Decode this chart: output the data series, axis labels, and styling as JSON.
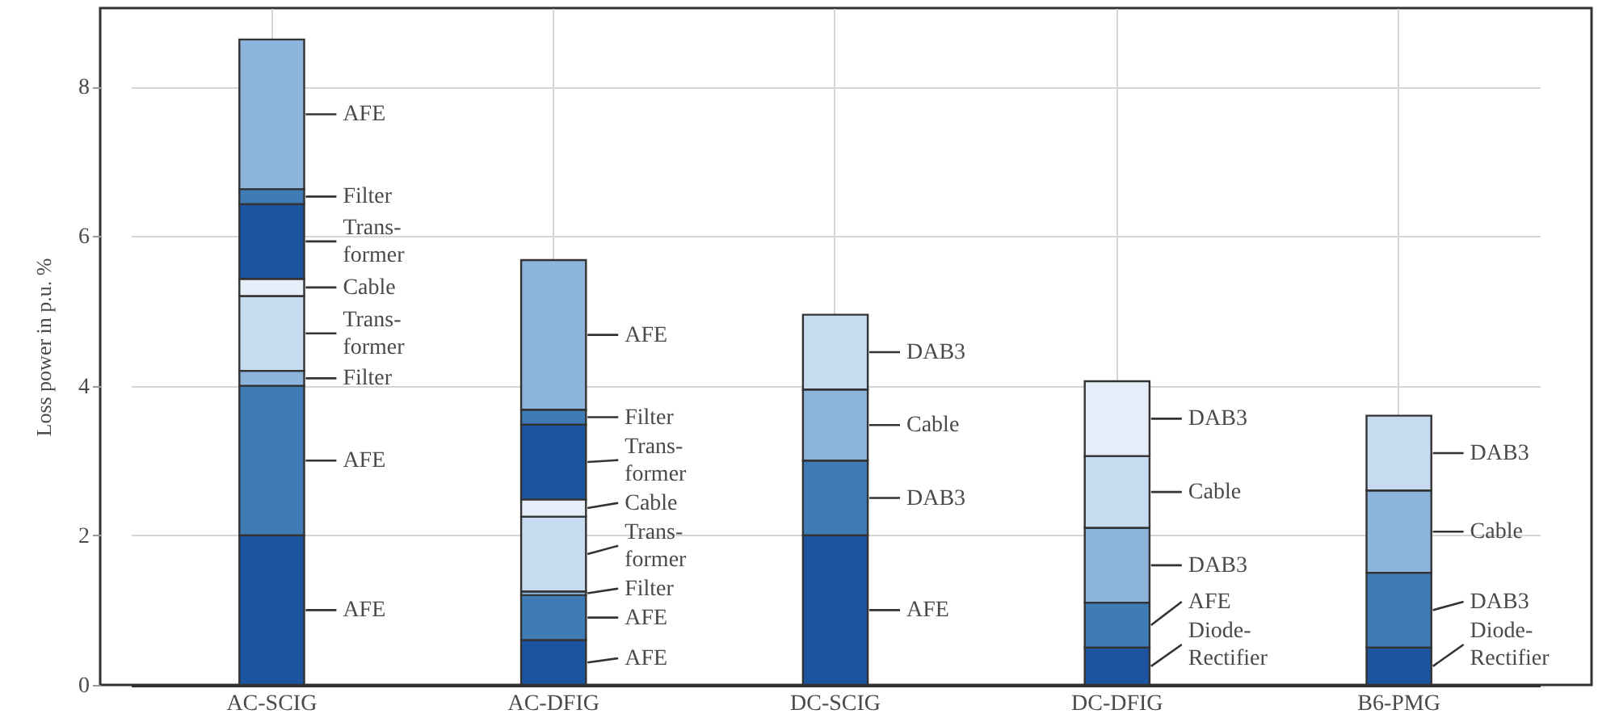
{
  "chart_data": {
    "type": "bar",
    "stacked": true,
    "ylabel": "Loss power in p.u. %",
    "categories": [
      "AC-SCIG",
      "AC-DFIG",
      "DC-SCIG",
      "DC-DFIG",
      "B6-PMG"
    ],
    "ylim": [
      0,
      9.05
    ],
    "yticks": [
      0,
      2,
      4,
      6,
      8
    ],
    "grid": true,
    "series": [
      {
        "color": "#1c54a0",
        "values": [
          2,
          0.6,
          2,
          0.5,
          0.5
        ],
        "value_labels": [
          "AFE",
          "AFE",
          "AFE",
          "Diode-\nRectifier",
          "Diode-\nRectifier"
        ]
      },
      {
        "color": "#3f7cb6",
        "values": [
          2,
          0.6,
          1,
          0.6,
          1.0
        ],
        "value_labels": [
          "AFE",
          "AFE",
          "DAB3",
          "AFE",
          "DAB3"
        ]
      },
      {
        "color": "#8db4dc",
        "values": [
          0.2,
          0.05,
          0.95,
          1.0,
          1.1
        ],
        "value_labels": [
          "Filter",
          "Filter",
          "Cable",
          "DAB3",
          "Cable"
        ]
      },
      {
        "color": "#c6dbef",
        "values": [
          1.0,
          1.0,
          1.0,
          0.96,
          1.0
        ],
        "value_labels": [
          "Trans-\nformer",
          "Trans-\nformer",
          "DAB3",
          "Cable",
          "DAB3"
        ]
      },
      {
        "color": "#e5eef8",
        "values": [
          0.23,
          0.23,
          null,
          1.0,
          null
        ],
        "value_labels": [
          "Cable",
          "Cable",
          null,
          "DAB3",
          null
        ]
      },
      {
        "color": "#1c54a0",
        "values": [
          1.0,
          1.0,
          null,
          null,
          null
        ],
        "value_labels": [
          "Trans-\nformer",
          "Trans-\nformer",
          null,
          null,
          null
        ]
      },
      {
        "color": "#3f7cb6",
        "values": [
          0.2,
          0.2,
          null,
          null,
          null
        ],
        "value_labels": [
          "Filter",
          "Filter",
          null,
          null,
          null
        ]
      },
      {
        "color": "#8db4dc",
        "values": [
          2.0,
          2.0,
          null,
          null,
          null
        ],
        "value_labels": [
          "AFE",
          "AFE",
          null,
          null,
          null
        ]
      }
    ]
  }
}
